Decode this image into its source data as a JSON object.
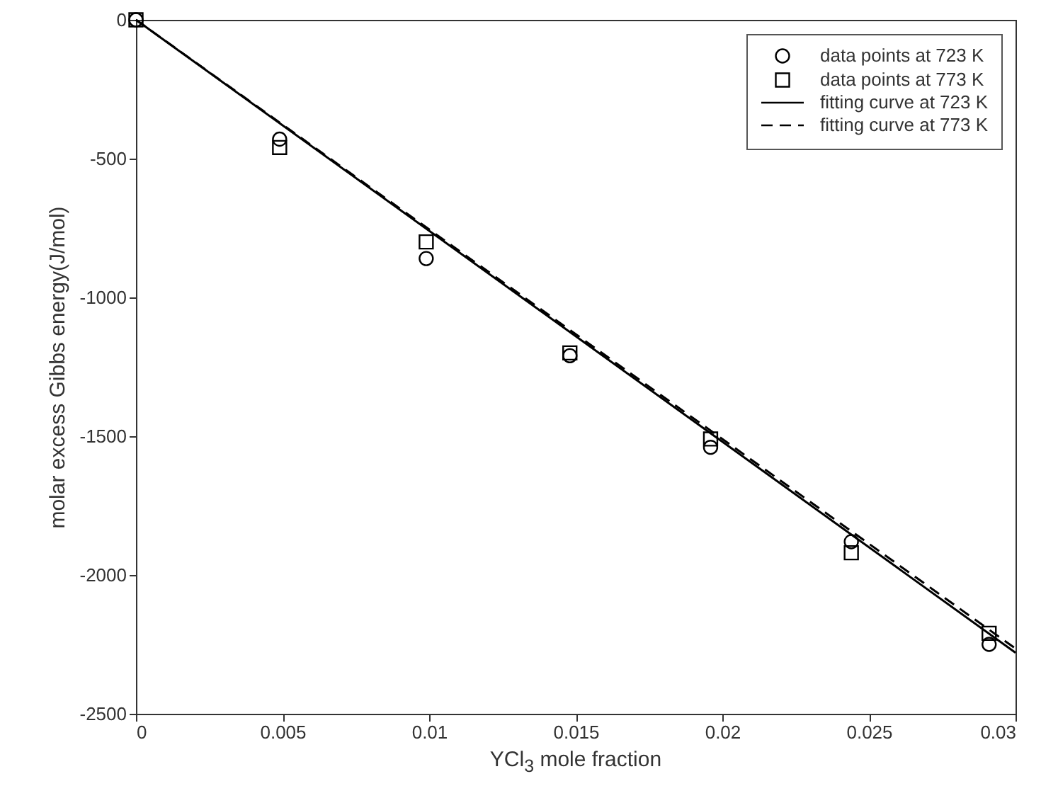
{
  "chart_data": {
    "type": "scatter",
    "xlabel": "YCl$_{3}$ mole fraction",
    "ylabel": "molar excess Gibbs energy(J/mol)",
    "xlim": [
      0,
      0.03
    ],
    "xticks": [
      0,
      0.005,
      0.01,
      0.015,
      0.02,
      0.025,
      0.03
    ],
    "ylim": [
      -2500,
      0
    ],
    "yticks": [
      -2500,
      -2000,
      -1500,
      -1000,
      -500,
      0
    ],
    "grid": false,
    "legend": "top right",
    "series": [
      {
        "name": "data points at 723 K",
        "marker": "circle",
        "color": "#000000",
        "x": [
          0,
          0.0049,
          0.0099,
          0.0148,
          0.0196,
          0.0244,
          0.0291
        ],
        "values": [
          0,
          -430,
          -860,
          -1210,
          -1540,
          -1880,
          -2250
        ]
      },
      {
        "name": "data points at 773 K",
        "marker": "square",
        "color": "#000000",
        "x": [
          0,
          0.0049,
          0.0099,
          0.0148,
          0.0196,
          0.0244,
          0.0291
        ],
        "values": [
          0,
          -460,
          -800,
          -1200,
          -1510,
          -1920,
          -2210
        ]
      },
      {
        "name": "fitting curve at 723 K",
        "type": "line",
        "line_style": "solid",
        "color": "#000000",
        "x": [
          0,
          0.03
        ],
        "values": [
          0,
          -2280
        ]
      },
      {
        "name": "fitting curve at 773 K",
        "type": "line",
        "line_style": "dashed",
        "color": "#000000",
        "x": [
          0,
          0.03
        ],
        "values": [
          0,
          -2265
        ]
      }
    ]
  }
}
